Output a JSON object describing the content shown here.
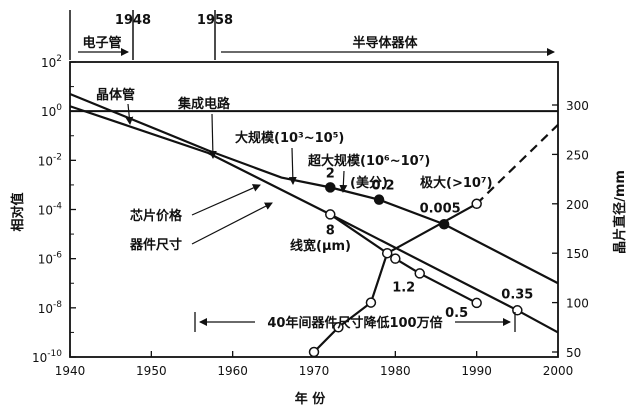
{
  "chart_data": {
    "type": "line",
    "xlabel": "年 份",
    "ylabel_left": "相对值",
    "ylabel_right": "晶片直径/mm",
    "x_ticks": [
      1940,
      1950,
      1960,
      1970,
      1980,
      1990,
      2000
    ],
    "y_left_ticks": [
      {
        "base": "10",
        "exp": "2"
      },
      {
        "base": "10",
        "exp": "0"
      },
      {
        "base": "10",
        "exp": "-2"
      },
      {
        "base": "10",
        "exp": "-4"
      },
      {
        "base": "10",
        "exp": "-6"
      },
      {
        "base": "10",
        "exp": "-8"
      },
      {
        "base": "10",
        "exp": "-10"
      }
    ],
    "y_right_ticks": [
      50,
      100,
      150,
      200,
      250,
      300
    ],
    "xlim": [
      1940,
      2000
    ],
    "ylim_left_log10": [
      -10,
      2
    ],
    "ylim_right": [
      50,
      300
    ],
    "eras": {
      "years": [
        "1948",
        "1958"
      ],
      "labels": [
        "电子管",
        "半导体器体"
      ]
    },
    "annotations": {
      "transistor": "晶体管",
      "ic": "集成电路",
      "lsi": "大规模(10³~10⁵)",
      "vlsi": "超大规模(10⁶~10⁷)",
      "vlsi_unit": "(美分)",
      "ulsi": "极大(>10⁷)",
      "chip_price": "芯片价格",
      "device_size": "器件尺寸",
      "line_width": "线宽(μm)",
      "forty_years": "40年间器件尺寸降低100万倍"
    },
    "series": [
      {
        "name": "芯片价格",
        "axis": "left",
        "x": [
          1940,
          1957,
          1966,
          1972,
          1978,
          1986,
          2000
        ],
        "log10_y": [
          0.7,
          -1.6,
          -2.7,
          -3.1,
          -3.6,
          -4.6,
          -7.0
        ],
        "markers": [
          {
            "x": 1972,
            "label": "2"
          },
          {
            "x": 1978,
            "label": "0.2"
          },
          {
            "x": 1986,
            "label": "0.005"
          }
        ]
      },
      {
        "name": "器件尺寸",
        "axis": "left",
        "x": [
          1940,
          1957,
          1972,
          1995,
          2000
        ],
        "log10_y": [
          0.2,
          -1.7,
          -4.2,
          -8.1,
          -9.0
        ],
        "markers": [
          {
            "x": 1972,
            "label": "8"
          },
          {
            "x": 1995,
            "label": "0.35"
          }
        ]
      },
      {
        "name": "线宽(μm)",
        "axis": "left",
        "x": [
          1972,
          1980,
          1983,
          1990
        ],
        "log10_y": [
          -4.2,
          -6.0,
          -6.6,
          -7.8
        ],
        "markers": [
          {
            "x": 1980,
            "label": ""
          },
          {
            "x": 1983,
            "label": "1.2"
          },
          {
            "x": 1990,
            "label": "0.5"
          }
        ]
      },
      {
        "name": "晶片直径",
        "axis": "right",
        "x": [
          1970,
          1973,
          1977,
          1979,
          1990
        ],
        "y": [
          50,
          75,
          100,
          150,
          200
        ],
        "markers": [
          {
            "x": 1970,
            "label": ""
          },
          {
            "x": 1973,
            "label": ""
          },
          {
            "x": 1977,
            "label": ""
          },
          {
            "x": 1979,
            "label": ""
          },
          {
            "x": 1990,
            "label": ""
          }
        ],
        "extension_dashed": {
          "x": [
            1990,
            2000
          ],
          "y": [
            200,
            280
          ]
        }
      }
    ],
    "reference_line": {
      "axis": "left",
      "log10_y": 0
    }
  }
}
